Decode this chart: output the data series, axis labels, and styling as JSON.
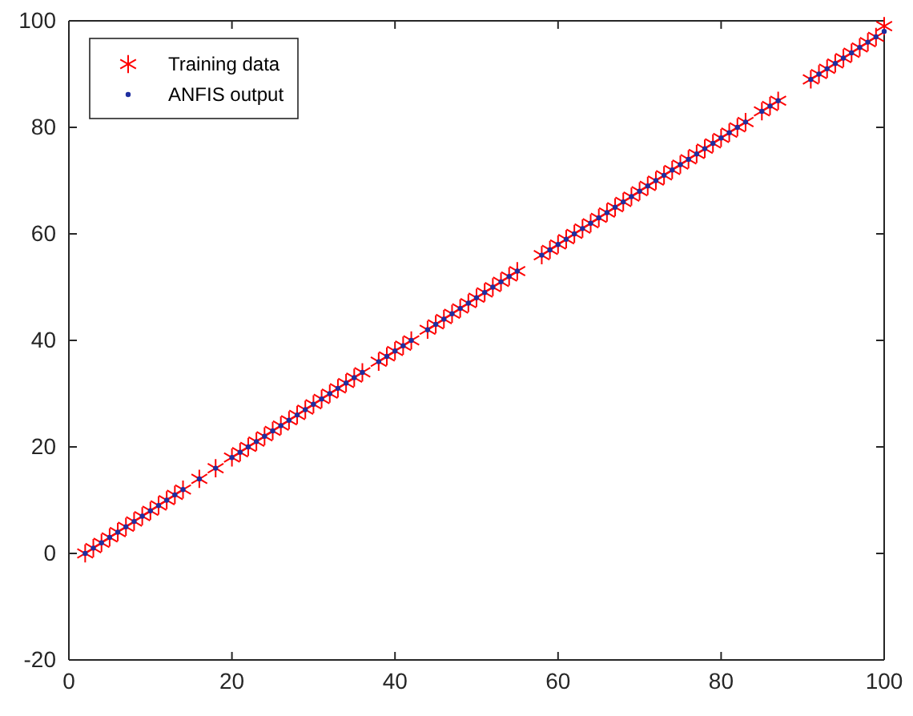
{
  "chart_data": {
    "type": "scatter",
    "xlim": [
      0,
      100
    ],
    "ylim": [
      -20,
      100
    ],
    "xticks": [
      0,
      20,
      40,
      60,
      80,
      100
    ],
    "yticks": [
      -20,
      0,
      20,
      40,
      60,
      80,
      100
    ],
    "grid": false,
    "legend": "top left",
    "x": [
      2,
      3,
      4,
      5,
      6,
      7,
      8,
      9,
      10,
      11,
      12,
      13,
      14,
      16,
      18,
      20,
      21,
      22,
      23,
      24,
      25,
      26,
      27,
      28,
      29,
      30,
      31,
      32,
      33,
      34,
      35,
      36,
      38,
      39,
      40,
      41,
      42,
      44,
      45,
      46,
      47,
      48,
      49,
      50,
      51,
      52,
      53,
      54,
      55,
      58,
      59,
      60,
      61,
      62,
      63,
      64,
      65,
      66,
      67,
      68,
      69,
      70,
      71,
      72,
      73,
      74,
      75,
      76,
      77,
      78,
      79,
      80,
      81,
      82,
      83,
      85,
      86,
      87,
      91,
      92,
      93,
      94,
      95,
      96,
      97,
      98,
      99,
      100
    ],
    "series": [
      {
        "name": "Training data",
        "color": "#ff0000",
        "marker": "cross",
        "values": [
          0,
          1,
          2,
          3,
          4,
          5,
          6,
          7,
          8,
          9,
          10,
          11,
          12,
          14,
          16,
          18,
          19,
          20,
          21,
          22,
          23,
          24,
          25,
          26,
          27,
          28,
          29,
          30,
          31,
          32,
          33,
          34,
          36,
          37,
          38,
          39,
          40,
          42,
          43,
          44,
          45,
          46,
          47,
          48,
          49,
          50,
          51,
          52,
          53,
          56,
          57,
          58,
          59,
          60,
          61,
          62,
          63,
          64,
          65,
          66,
          67,
          68,
          69,
          70,
          71,
          72,
          73,
          74,
          75,
          76,
          77,
          78,
          79,
          80,
          81,
          83,
          84,
          85,
          89,
          90,
          91,
          92,
          93,
          94,
          95,
          96,
          97,
          99
        ]
      },
      {
        "name": "ANFIS output",
        "color": "#1f2fa0",
        "marker": "circle",
        "values": [
          0,
          1,
          2,
          3,
          4,
          5,
          6,
          7,
          8,
          9,
          10,
          11,
          12,
          14,
          16,
          18,
          19,
          20,
          21,
          22,
          23,
          24,
          25,
          26,
          27,
          28,
          29,
          30,
          31,
          32,
          33,
          34,
          36,
          37,
          38,
          39,
          40,
          42,
          43,
          44,
          45,
          46,
          47,
          48,
          49,
          50,
          51,
          52,
          53,
          56,
          57,
          58,
          59,
          60,
          61,
          62,
          63,
          64,
          65,
          66,
          67,
          68,
          69,
          70,
          71,
          72,
          73,
          74,
          75,
          76,
          77,
          78,
          79,
          80,
          81,
          83,
          84,
          85,
          89,
          90,
          91,
          92,
          93,
          94,
          95,
          96,
          97,
          98
        ]
      }
    ]
  }
}
